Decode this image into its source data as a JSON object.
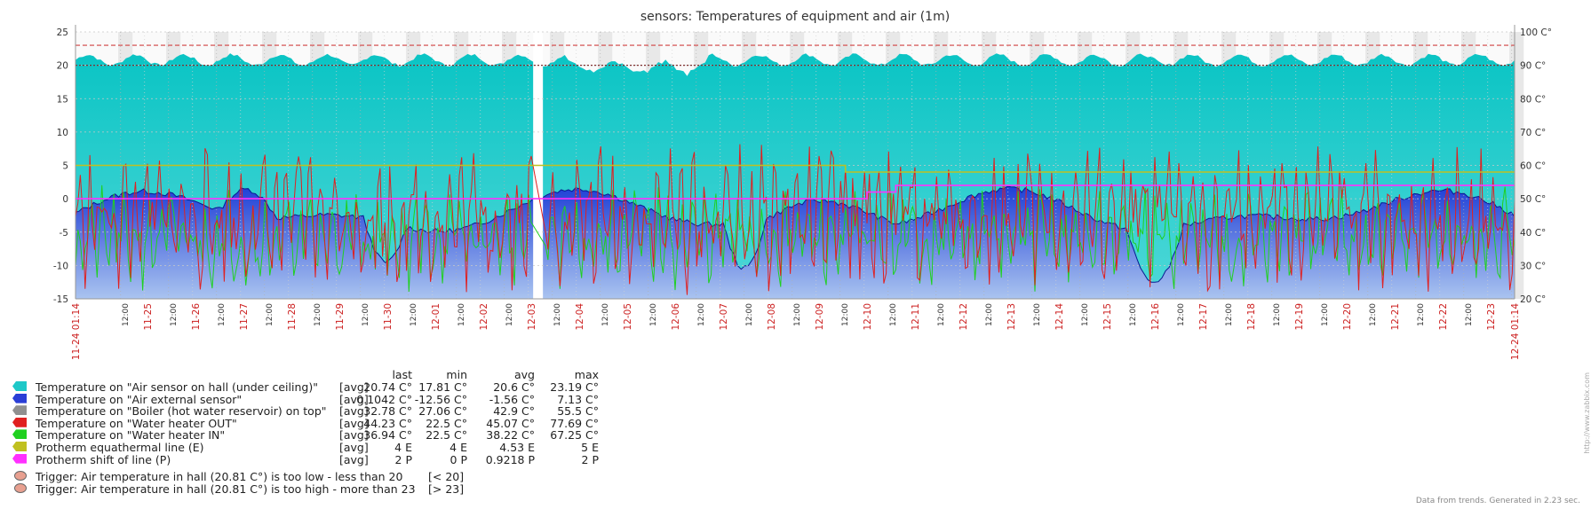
{
  "title": "sensors: Temperatures of equipment and air (1m)",
  "chart_data": {
    "type": "area",
    "title": "sensors: Temperatures of equipment and air (1m)",
    "y_left": {
      "ticks": [
        25,
        20,
        15,
        10,
        5,
        0,
        -5,
        -10,
        -15
      ],
      "range": [
        -15,
        25
      ]
    },
    "y_right": {
      "ticks": [
        "100 C°",
        "90 C°",
        "80 C°",
        "70 C°",
        "60 C°",
        "50 C°",
        "40 C°",
        "30 C°",
        "20 C°"
      ],
      "range": [
        20,
        100
      ],
      "unit": "C°"
    },
    "x_start_label": "11-24 01:14",
    "x_end_label": "12-24 01:14",
    "x_day_labels": [
      "11-25",
      "11-26",
      "11-27",
      "11-28",
      "11-29",
      "11-30",
      "12-01",
      "12-02",
      "12-03",
      "12-04",
      "12-05",
      "12-06",
      "12-07",
      "12-08",
      "12-09",
      "12-10",
      "12-11",
      "12-12",
      "12-13",
      "12-14",
      "12-15",
      "12-16",
      "12-17",
      "12-18",
      "12-19",
      "12-20",
      "12-21",
      "12-22",
      "12-23"
    ],
    "x_noon_label": "12:00",
    "thresholds": [
      {
        "value": 23,
        "color": "#d04040",
        "style": "dashed"
      },
      {
        "value": 20,
        "color": "#803030",
        "style": "dotted"
      }
    ],
    "series": [
      {
        "name": "Temperature on \"Air sensor on hall (under ceiling)\"",
        "color": "#1ec8c8",
        "kind": "area",
        "axis": "left",
        "last": 20.74,
        "min": 17.81,
        "avg": 20.6,
        "max": 23.19
      },
      {
        "name": "Temperature on \"Air external sensor\"",
        "color": "#2a3ed6",
        "kind": "area",
        "axis": "left",
        "last": 0.1042,
        "min": -12.56,
        "avg": -1.56,
        "max": 7.13
      },
      {
        "name": "Temperature on \"Boiler (hot water reservoir) on top\"",
        "color": "#909090",
        "kind": "line",
        "axis": "right",
        "last": 32.78,
        "min": 27.06,
        "avg": 42.9,
        "max": 55.5
      },
      {
        "name": "Temperature on \"Water heater OUT\"",
        "color": "#e02020",
        "kind": "line",
        "axis": "right",
        "last": 44.23,
        "min": 22.5,
        "avg": 45.07,
        "max": 77.69
      },
      {
        "name": "Temperature on \"Water heater IN\"",
        "color": "#20d020",
        "kind": "line",
        "axis": "right",
        "last": 36.94,
        "min": 22.5,
        "avg": 38.22,
        "max": 67.25
      },
      {
        "name": "Protherm equathermal line (E)",
        "color": "#c0c020",
        "kind": "step",
        "axis": "left",
        "steps": [
          [
            0,
            5
          ],
          [
            0.535,
            5
          ],
          [
            0.535,
            4
          ],
          [
            1,
            4
          ]
        ]
      },
      {
        "name": "Protherm shift of line (P)",
        "color": "#ff30ff",
        "kind": "step",
        "axis": "left",
        "steps": [
          [
            0,
            0
          ],
          [
            0.55,
            0
          ],
          [
            0.55,
            1
          ],
          [
            0.57,
            1
          ],
          [
            0.57,
            2
          ],
          [
            1,
            2
          ]
        ]
      }
    ]
  },
  "legend": {
    "headers": {
      "last": "last",
      "min": "min",
      "avg": "avg",
      "max": "max"
    },
    "rows": [
      {
        "color": "#1ec8c8",
        "label": "Temperature on \"Air sensor on hall (under ceiling)\"",
        "agg": "[avg]",
        "last": "20.74 C°",
        "min": "17.81 C°",
        "avg": "20.6 C°",
        "max": "23.19 C°"
      },
      {
        "color": "#2a3ed6",
        "label": "Temperature on \"Air external sensor\"",
        "agg": "[avg]",
        "last": "0.1042 C°",
        "min": "-12.56 C°",
        "avg": "-1.56 C°",
        "max": "7.13 C°"
      },
      {
        "color": "#909090",
        "label": "Temperature on \"Boiler (hot water reservoir) on top\"",
        "agg": "[avg]",
        "last": "32.78 C°",
        "min": "27.06 C°",
        "avg": "42.9 C°",
        "max": "55.5 C°"
      },
      {
        "color": "#e02020",
        "label": "Temperature on \"Water heater OUT\"",
        "agg": "[avg]",
        "last": "44.23 C°",
        "min": "22.5 C°",
        "avg": "45.07 C°",
        "max": "77.69 C°"
      },
      {
        "color": "#20d020",
        "label": "Temperature on \"Water heater IN\"",
        "agg": "[avg]",
        "last": "36.94 C°",
        "min": "22.5 C°",
        "avg": "38.22 C°",
        "max": "67.25 C°"
      },
      {
        "color": "#c0c020",
        "label": "Protherm equathermal line (E)",
        "agg": "[avg]",
        "last": "4 E",
        "min": "4 E",
        "avg": "4.53 E",
        "max": "5 E"
      },
      {
        "color": "#ff30ff",
        "label": "Protherm shift of line (P)",
        "agg": "[avg]",
        "last": "2 P",
        "min": "0 P",
        "avg": "0.9218 P",
        "max": "2 P"
      }
    ],
    "triggers": [
      {
        "color": "#e8a090",
        "label": "Trigger: Air temperature in hall (20.81 C°) is too low - less than 20",
        "cond": "[< 20]"
      },
      {
        "color": "#e8a090",
        "label": "Trigger: Air temperature in hall (20.81 C°) is too high - more than 23",
        "cond": "[> 23]"
      }
    ]
  },
  "footer": "Data from trends. Generated in 2.23 sec.",
  "side_link": "http://www.zabbix.com"
}
